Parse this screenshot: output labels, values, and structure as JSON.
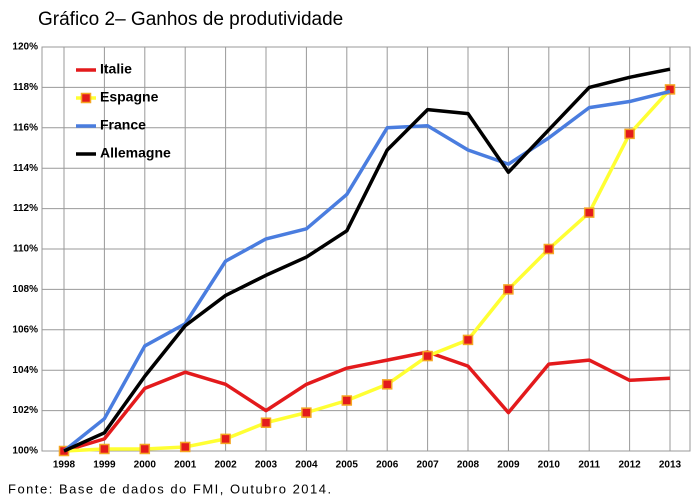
{
  "chart_data": {
    "type": "line",
    "title": "Gráfico 2– Ganhos de produtividade",
    "source": "Fonte: Base de dados do FMI, Outubro 2014.",
    "categories": [
      "1998",
      "1999",
      "2000",
      "2001",
      "2002",
      "2003",
      "2004",
      "2005",
      "2006",
      "2007",
      "2008",
      "2009",
      "2010",
      "2011",
      "2012",
      "2013"
    ],
    "series": [
      {
        "name": "Italie",
        "color": "#e31a1c",
        "marker": false,
        "values": [
          100,
          100.6,
          103.1,
          103.9,
          103.3,
          102.0,
          103.3,
          104.1,
          104.5,
          104.9,
          104.2,
          101.9,
          104.3,
          104.5,
          103.5,
          103.6
        ]
      },
      {
        "name": "Espagne",
        "color": "#ffff33",
        "marker": true,
        "marker_color": "#e31a1c",
        "values": [
          100,
          100.1,
          100.1,
          100.2,
          100.6,
          101.4,
          101.9,
          102.5,
          103.3,
          104.7,
          105.5,
          108.0,
          110.0,
          111.8,
          115.7,
          117.9
        ]
      },
      {
        "name": "France",
        "color": "#4a7ddf",
        "marker": false,
        "values": [
          100,
          101.6,
          105.2,
          106.3,
          109.4,
          110.5,
          111.0,
          112.7,
          116.0,
          116.1,
          114.9,
          114.2,
          115.5,
          117.0,
          117.3,
          117.8
        ]
      },
      {
        "name": "Allemagne",
        "color": "#000000",
        "marker": false,
        "values": [
          100,
          100.9,
          103.7,
          106.2,
          107.7,
          108.7,
          109.6,
          110.9,
          114.9,
          116.9,
          116.7,
          113.8,
          115.9,
          118.0,
          118.5,
          118.9
        ]
      }
    ],
    "ylim": [
      100,
      120
    ],
    "yticks": [
      {
        "value": 100,
        "label": "100%"
      },
      {
        "value": 102,
        "label": "102%"
      },
      {
        "value": 104,
        "label": "104%"
      },
      {
        "value": 106,
        "label": "106%"
      },
      {
        "value": 108,
        "label": "108%"
      },
      {
        "value": 110,
        "label": "110%"
      },
      {
        "value": 112,
        "label": "112%"
      },
      {
        "value": 114,
        "label": "114%"
      },
      {
        "value": 116,
        "label": "116%"
      },
      {
        "value": 118,
        "label": "118%"
      },
      {
        "value": 120,
        "label": "120%"
      }
    ],
    "grid": true,
    "legend": "top-left"
  }
}
